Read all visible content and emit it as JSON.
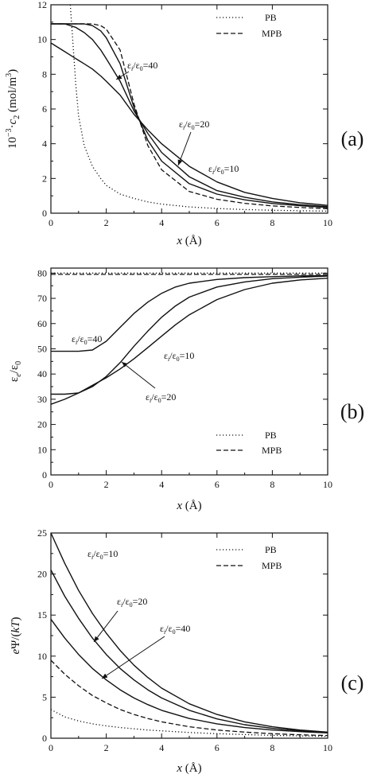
{
  "chart_data": [
    {
      "type": "line",
      "panel_label": "(a)",
      "xlabel": "x (Å)",
      "ylabel": "10⁻³·c₂ (mol/m³)",
      "xlim": [
        0,
        10
      ],
      "ylim": [
        0,
        12
      ],
      "xticks": [
        0,
        2,
        4,
        6,
        8,
        10
      ],
      "yticks": [
        0,
        2,
        4,
        6,
        8,
        10,
        12
      ],
      "x": [
        0,
        0.5,
        0.7,
        0.9,
        1.0,
        1.2,
        1.5,
        1.8,
        2.0,
        2.5,
        3.0,
        3.5,
        4.0,
        5.0,
        6.0,
        7.0,
        8.0,
        9.0,
        10.0
      ],
      "legend": {
        "position": "top-right",
        "entries": [
          {
            "label": "PB",
            "style": "dotted"
          },
          {
            "label": "MPB",
            "style": "dashed"
          }
        ]
      },
      "series": [
        {
          "name": "PB",
          "style": "dotted",
          "values": [
            null,
            null,
            12.0,
            7.4,
            5.6,
            3.9,
            2.7,
            2.0,
            1.6,
            1.1,
            0.85,
            0.65,
            0.52,
            0.36,
            0.27,
            0.21,
            0.17,
            0.14,
            0.12
          ]
        },
        {
          "name": "MPB",
          "style": "dashed",
          "values": [
            10.9,
            10.9,
            10.9,
            10.9,
            10.9,
            10.9,
            10.9,
            10.8,
            10.6,
            9.4,
            6.3,
            3.9,
            2.5,
            1.25,
            0.8,
            0.57,
            0.42,
            0.33,
            0.26
          ]
        },
        {
          "name": "εi/ε0=40",
          "style": "solid",
          "values": [
            10.9,
            10.9,
            10.9,
            10.9,
            10.9,
            10.9,
            10.8,
            10.5,
            10.1,
            8.6,
            6.1,
            4.2,
            3.0,
            1.7,
            1.1,
            0.77,
            0.56,
            0.43,
            0.33
          ]
        },
        {
          "name": "εi/ε0=20",
          "style": "solid",
          "values": [
            10.9,
            10.9,
            10.8,
            10.7,
            10.6,
            10.4,
            10.0,
            9.4,
            8.9,
            7.6,
            5.9,
            4.6,
            3.5,
            2.1,
            1.3,
            0.92,
            0.65,
            0.49,
            0.38
          ]
        },
        {
          "name": "εi/ε0=10",
          "style": "solid",
          "values": [
            9.8,
            9.3,
            9.1,
            8.9,
            8.8,
            8.6,
            8.3,
            7.9,
            7.6,
            6.8,
            5.7,
            4.8,
            4.0,
            2.7,
            1.8,
            1.2,
            0.85,
            0.6,
            0.45
          ]
        }
      ],
      "annotations": [
        {
          "text": "εi/ε0=40",
          "series": "εi/ε0=40",
          "x": 2.45,
          "y": 9.8
        },
        {
          "text": "εi/ε0=20",
          "series": "εi/ε0=20",
          "x": 4.6,
          "y": 3.4
        },
        {
          "text": "εi/ε0=10",
          "series": "εi/ε0=10"
        }
      ]
    },
    {
      "type": "line",
      "panel_label": "(b)",
      "xlabel": "x (Å)",
      "ylabel": "εe/ε0",
      "xlim": [
        0,
        10
      ],
      "ylim": [
        0,
        82
      ],
      "xticks": [
        0,
        2,
        4,
        6,
        8,
        10
      ],
      "yticks": [
        0,
        10,
        20,
        30,
        40,
        50,
        60,
        70,
        80
      ],
      "x": [
        0,
        0.5,
        1.0,
        1.5,
        2.0,
        2.5,
        3.0,
        3.5,
        4.0,
        4.5,
        5.0,
        6.0,
        7.0,
        8.0,
        9.0,
        10.0
      ],
      "legend": {
        "position": "lower-right",
        "entries": [
          {
            "label": "PB",
            "style": "dotted"
          },
          {
            "label": "MPB",
            "style": "dashed"
          }
        ]
      },
      "series": [
        {
          "name": "PB",
          "style": "dotted",
          "values": [
            80,
            80,
            80,
            80,
            80,
            80,
            80,
            80,
            80,
            80,
            80,
            80,
            80,
            80,
            80,
            80
          ]
        },
        {
          "name": "MPB",
          "style": "dashed",
          "values": [
            79.5,
            79.5,
            79.5,
            79.5,
            79.5,
            79.5,
            79.5,
            79.5,
            79.5,
            79.5,
            79.5,
            79.5,
            79.5,
            79.5,
            79.5,
            79.5
          ]
        },
        {
          "name": "εi/ε0=40",
          "style": "solid",
          "values": [
            49,
            49,
            49,
            49.5,
            53,
            58.5,
            64,
            68.5,
            72,
            74.5,
            76,
            77.5,
            78.2,
            78.6,
            78.9,
            79
          ]
        },
        {
          "name": "εi/ε0=20",
          "style": "solid",
          "values": [
            32,
            32,
            32.5,
            35,
            39,
            44.5,
            51,
            57,
            62.5,
            67,
            70.5,
            74.5,
            76.5,
            77.8,
            78.4,
            78.8
          ]
        },
        {
          "name": "εi/ε0=10",
          "style": "solid",
          "values": [
            28,
            30,
            32.5,
            35.5,
            38.5,
            42,
            46,
            50.5,
            55,
            59.5,
            63.5,
            69.5,
            73.5,
            76,
            77.3,
            78
          ]
        }
      ],
      "annotations": [
        {
          "text": "εi/ε0=40",
          "series": "εi/ε0=40"
        },
        {
          "text": "εi/ε0=10",
          "series": "εi/ε0=10"
        },
        {
          "text": "εi/ε0=20",
          "series": "εi/ε0=20",
          "x": 2.5,
          "y": 46
        }
      ]
    },
    {
      "type": "line",
      "panel_label": "(c)",
      "xlabel": "x (Å)",
      "ylabel": "eΨ/(kT)",
      "xlim": [
        0,
        10
      ],
      "ylim": [
        0,
        25
      ],
      "xticks": [
        0,
        2,
        4,
        6,
        8,
        10
      ],
      "yticks": [
        0,
        5,
        10,
        15,
        20,
        25
      ],
      "x": [
        0,
        0.5,
        1.0,
        1.5,
        2.0,
        2.5,
        3.0,
        3.5,
        4.0,
        5.0,
        6.0,
        7.0,
        8.0,
        9.0,
        10.0
      ],
      "legend": {
        "position": "top-right",
        "entries": [
          {
            "label": "PB",
            "style": "dotted"
          },
          {
            "label": "MPB",
            "style": "dashed"
          }
        ]
      },
      "series": [
        {
          "name": "PB",
          "style": "dotted",
          "values": [
            3.5,
            2.6,
            2.1,
            1.75,
            1.5,
            1.3,
            1.15,
            1.0,
            0.9,
            0.7,
            0.55,
            0.45,
            0.35,
            0.28,
            0.22
          ]
        },
        {
          "name": "MPB",
          "style": "dashed",
          "values": [
            9.5,
            7.8,
            6.4,
            5.2,
            4.3,
            3.5,
            2.9,
            2.4,
            2.0,
            1.4,
            1.0,
            0.75,
            0.55,
            0.42,
            0.33
          ]
        },
        {
          "name": "εi/ε0=40",
          "style": "solid",
          "values": [
            14.5,
            12.2,
            10.2,
            8.5,
            7.1,
            5.9,
            4.9,
            4.1,
            3.4,
            2.4,
            1.75,
            1.3,
            1.0,
            0.8,
            0.65
          ]
        },
        {
          "name": "εi/ε0=20",
          "style": "solid",
          "values": [
            20.5,
            17.3,
            14.6,
            12.2,
            10.2,
            8.5,
            7.1,
            5.9,
            4.9,
            3.4,
            2.35,
            1.65,
            1.2,
            0.9,
            0.7
          ]
        },
        {
          "name": "εi/ε0=10",
          "style": "solid",
          "values": [
            25,
            21.3,
            18.0,
            15.2,
            12.8,
            10.7,
            8.9,
            7.4,
            6.1,
            4.2,
            2.9,
            2.0,
            1.4,
            1.0,
            0.75
          ]
        }
      ],
      "annotations": [
        {
          "text": "εi/ε0=10",
          "series": "εi/ε0=10"
        },
        {
          "text": "εi/ε0=20",
          "series": "εi/ε0=20",
          "x": 1.5,
          "y": 11.5
        },
        {
          "text": "εi/ε0=40",
          "series": "εi/ε0=40",
          "x": 1.8,
          "y": 7.3
        }
      ]
    }
  ]
}
